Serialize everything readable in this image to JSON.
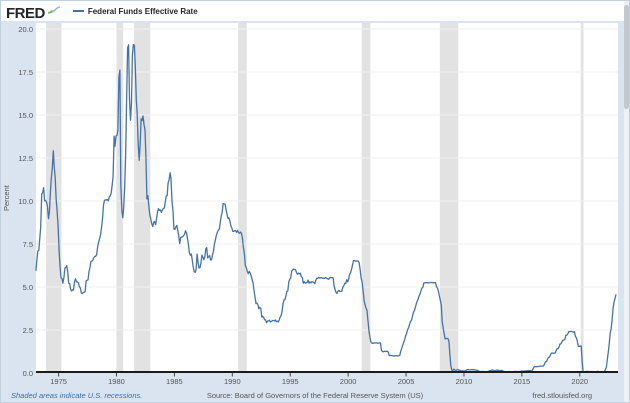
{
  "header": {
    "logo_text": "FRED",
    "legend_label": "Federal Funds Effective Rate"
  },
  "footer": {
    "recession_note": "Shaded areas indicate U.S. recessions.",
    "source": "Source: Board of Governors of the Federal Reserve System (US)",
    "site": "fred.stlouisfed.org"
  },
  "colors": {
    "line": "#4572a7",
    "recession_band": "#e2e2e2",
    "gridline": "#f0f0f0",
    "axis_line": "#1b1b1b",
    "tick_label": "#555555",
    "chart_background": "#ffffff",
    "frame_background": "#d9e4f0"
  },
  "chart_data": {
    "type": "line",
    "title": "Federal Funds Effective Rate",
    "series_name": "Federal Funds Effective Rate",
    "ylabel": "Percent",
    "xlabel": "",
    "units": "percent",
    "frequency": "monthly",
    "grid": "horizontal-only",
    "legend_position": "top-left",
    "ylim": [
      0,
      20
    ],
    "xlim_years": [
      1973.05,
      2023.3
    ],
    "y_ticks": [
      0,
      2.5,
      5,
      7.5,
      10,
      12.5,
      15,
      17.5,
      20
    ],
    "y_tick_labels": [
      "0.0",
      "2.5",
      "5.0",
      "7.5",
      "10.0",
      "12.5",
      "15.0",
      "17.5",
      "20.0"
    ],
    "x_ticks": [
      1975,
      1980,
      1985,
      1990,
      1995,
      2000,
      2005,
      2010,
      2015,
      2020
    ],
    "recessions_years": [
      [
        1973.92,
        1975.25
      ],
      [
        1980.0,
        1980.58
      ],
      [
        1981.5,
        1982.92
      ],
      [
        1990.5,
        1991.25
      ],
      [
        2001.17,
        2001.92
      ],
      [
        2007.92,
        2009.5
      ],
      [
        2020.08,
        2020.33
      ]
    ],
    "monthly_values": {
      "1973": [
        5.94,
        6.58,
        7.09,
        7.12,
        7.84,
        8.49,
        10.4,
        10.5,
        10.78,
        10.01,
        10.03,
        9.95
      ],
      "1974": [
        9.65,
        8.97,
        9.35,
        10.51,
        11.31,
        11.93,
        12.92,
        12.01,
        11.34,
        10.06,
        9.45,
        8.53
      ],
      "1975": [
        7.13,
        6.24,
        5.54,
        5.49,
        5.22,
        5.55,
        6.1,
        6.14,
        6.24,
        5.82,
        5.22,
        5.2
      ],
      "1976": [
        4.87,
        4.77,
        4.84,
        4.82,
        5.29,
        5.48,
        5.31,
        5.29,
        5.25,
        5.03,
        4.95,
        4.65
      ],
      "1977": [
        4.61,
        4.68,
        4.69,
        4.73,
        5.35,
        5.39,
        5.42,
        5.9,
        6.14,
        6.47,
        6.51,
        6.56
      ],
      "1978": [
        6.7,
        6.78,
        6.79,
        6.89,
        7.36,
        7.6,
        7.81,
        8.04,
        8.45,
        8.96,
        9.76,
        10.03
      ],
      "1979": [
        10.07,
        10.06,
        10.09,
        10.01,
        10.24,
        10.29,
        10.47,
        10.94,
        11.43,
        13.77,
        13.18,
        13.78
      ],
      "1980": [
        13.82,
        14.13,
        17.19,
        17.61,
        10.98,
        9.47,
        9.03,
        9.61,
        10.87,
        12.81,
        15.85,
        18.9
      ],
      "1981": [
        19.08,
        15.93,
        14.7,
        15.72,
        18.52,
        19.1,
        19.04,
        17.82,
        15.87,
        15.08,
        13.31,
        12.37
      ],
      "1982": [
        13.22,
        14.78,
        14.68,
        14.94,
        14.45,
        14.15,
        12.59,
        10.12,
        10.31,
        9.71,
        9.2,
        8.95
      ],
      "1983": [
        8.68,
        8.51,
        8.77,
        8.8,
        8.63,
        8.98,
        9.37,
        9.56,
        9.45,
        9.48,
        9.34,
        9.47
      ],
      "1984": [
        9.56,
        9.59,
        9.91,
        10.29,
        10.32,
        11.06,
        11.23,
        11.64,
        11.3,
        9.99,
        9.43,
        8.38
      ],
      "1985": [
        8.35,
        8.5,
        8.58,
        8.27,
        7.97,
        7.53,
        7.88,
        7.9,
        7.92,
        7.99,
        8.05,
        8.27
      ],
      "1986": [
        8.14,
        7.86,
        7.48,
        6.99,
        6.85,
        6.92,
        6.56,
        6.17,
        5.89,
        5.85,
        6.04,
        6.91
      ],
      "1987": [
        6.43,
        6.1,
        6.13,
        6.37,
        6.85,
        6.73,
        6.58,
        6.73,
        7.22,
        7.29,
        6.69,
        6.77
      ],
      "1988": [
        6.83,
        6.58,
        6.58,
        6.87,
        7.09,
        7.51,
        7.75,
        8.01,
        8.19,
        8.3,
        8.35,
        8.76
      ],
      "1989": [
        9.12,
        9.36,
        9.85,
        9.84,
        9.81,
        9.53,
        9.24,
        8.99,
        9.02,
        8.84,
        8.55,
        8.45
      ],
      "1990": [
        8.23,
        8.24,
        8.28,
        8.26,
        8.18,
        8.29,
        8.15,
        8.13,
        8.2,
        8.11,
        7.81,
        7.31
      ],
      "1991": [
        6.91,
        6.25,
        6.12,
        5.91,
        5.78,
        5.9,
        5.82,
        5.66,
        5.45,
        5.21,
        4.81,
        4.43
      ],
      "1992": [
        4.03,
        4.06,
        3.98,
        3.73,
        3.82,
        3.76,
        3.25,
        3.3,
        3.22,
        3.1,
        3.09,
        2.92
      ],
      "1993": [
        3.02,
        3.03,
        3.07,
        2.96,
        3.0,
        3.04,
        3.06,
        3.03,
        3.09,
        2.99,
        3.02,
        2.96
      ],
      "1994": [
        3.05,
        3.25,
        3.34,
        3.56,
        4.01,
        4.25,
        4.26,
        4.47,
        4.73,
        4.76,
        5.29,
        5.45
      ],
      "1995": [
        5.53,
        5.92,
        5.98,
        6.05,
        6.01,
        6.0,
        5.85,
        5.74,
        5.8,
        5.76,
        5.8,
        5.6
      ],
      "1996": [
        5.56,
        5.22,
        5.31,
        5.22,
        5.24,
        5.27,
        5.4,
        5.22,
        5.3,
        5.24,
        5.31,
        5.29
      ],
      "1997": [
        5.25,
        5.19,
        5.39,
        5.51,
        5.5,
        5.56,
        5.52,
        5.54,
        5.54,
        5.5,
        5.52,
        5.5
      ],
      "1998": [
        5.56,
        5.51,
        5.49,
        5.45,
        5.49,
        5.56,
        5.54,
        5.55,
        5.51,
        5.07,
        4.83,
        4.68
      ],
      "1999": [
        4.63,
        4.76,
        4.81,
        4.74,
        4.74,
        4.76,
        4.99,
        5.07,
        5.22,
        5.2,
        5.42,
        5.3
      ],
      "2000": [
        5.45,
        5.73,
        5.85,
        6.02,
        6.27,
        6.53,
        6.54,
        6.5,
        6.52,
        6.51,
        6.51,
        6.4
      ],
      "2001": [
        5.98,
        5.49,
        5.31,
        4.8,
        4.21,
        3.97,
        3.77,
        3.65,
        3.07,
        2.49,
        2.09,
        1.82
      ],
      "2002": [
        1.73,
        1.74,
        1.73,
        1.75,
        1.75,
        1.75,
        1.73,
        1.74,
        1.75,
        1.75,
        1.34,
        1.24
      ],
      "2003": [
        1.24,
        1.26,
        1.25,
        1.26,
        1.26,
        1.22,
        1.01,
        1.03,
        1.01,
        1.01,
        1.0,
        0.98
      ],
      "2004": [
        1.0,
        1.01,
        1.0,
        1.0,
        1.0,
        1.03,
        1.26,
        1.43,
        1.61,
        1.76,
        1.93,
        2.16
      ],
      "2005": [
        2.28,
        2.5,
        2.63,
        2.79,
        3.0,
        3.04,
        3.26,
        3.5,
        3.62,
        3.78,
        4.0,
        4.16
      ],
      "2006": [
        4.29,
        4.49,
        4.59,
        4.79,
        4.94,
        4.99,
        5.24,
        5.25,
        5.25,
        5.25,
        5.25,
        5.24
      ],
      "2007": [
        5.25,
        5.26,
        5.26,
        5.25,
        5.25,
        5.25,
        5.26,
        5.02,
        4.94,
        4.76,
        4.49,
        4.24
      ],
      "2008": [
        3.94,
        2.98,
        2.61,
        2.28,
        1.98,
        2.0,
        2.01,
        2.0,
        1.81,
        0.97,
        0.39,
        0.16
      ],
      "2009": [
        0.15,
        0.22,
        0.18,
        0.15,
        0.18,
        0.21,
        0.16,
        0.16,
        0.15,
        0.12,
        0.12,
        0.12
      ],
      "2010": [
        0.11,
        0.13,
        0.16,
        0.2,
        0.2,
        0.18,
        0.18,
        0.19,
        0.19,
        0.19,
        0.19,
        0.18
      ],
      "2011": [
        0.17,
        0.16,
        0.14,
        0.1,
        0.09,
        0.09,
        0.07,
        0.1,
        0.08,
        0.07,
        0.08,
        0.07
      ],
      "2012": [
        0.08,
        0.1,
        0.13,
        0.14,
        0.16,
        0.16,
        0.16,
        0.13,
        0.14,
        0.16,
        0.16,
        0.16
      ],
      "2013": [
        0.14,
        0.15,
        0.14,
        0.15,
        0.11,
        0.09,
        0.09,
        0.08,
        0.08,
        0.09,
        0.08,
        0.09
      ],
      "2014": [
        0.07,
        0.07,
        0.08,
        0.09,
        0.09,
        0.1,
        0.09,
        0.09,
        0.09,
        0.09,
        0.09,
        0.12
      ],
      "2015": [
        0.11,
        0.11,
        0.11,
        0.12,
        0.12,
        0.13,
        0.13,
        0.14,
        0.14,
        0.12,
        0.12,
        0.24
      ],
      "2016": [
        0.34,
        0.38,
        0.36,
        0.37,
        0.37,
        0.38,
        0.39,
        0.4,
        0.4,
        0.4,
        0.41,
        0.54
      ],
      "2017": [
        0.65,
        0.66,
        0.79,
        0.9,
        0.91,
        1.04,
        1.15,
        1.16,
        1.15,
        1.15,
        1.16,
        1.3
      ],
      "2018": [
        1.41,
        1.42,
        1.51,
        1.69,
        1.7,
        1.82,
        1.91,
        1.91,
        1.95,
        2.19,
        2.2,
        2.27
      ],
      "2019": [
        2.4,
        2.4,
        2.41,
        2.42,
        2.39,
        2.38,
        2.4,
        2.13,
        2.04,
        1.83,
        1.55,
        1.55
      ],
      "2020": [
        1.55,
        1.58,
        0.65,
        0.05,
        0.05,
        0.08,
        0.09,
        0.1,
        0.09,
        0.09,
        0.09,
        0.09
      ],
      "2021": [
        0.09,
        0.08,
        0.07,
        0.07,
        0.06,
        0.08,
        0.1,
        0.09,
        0.08,
        0.08,
        0.08,
        0.08
      ],
      "2022": [
        0.08,
        0.08,
        0.2,
        0.33,
        0.77,
        1.21,
        1.68,
        2.33,
        2.56,
        3.08,
        3.78,
        4.1
      ],
      "2023": [
        4.33,
        4.57
      ]
    }
  }
}
